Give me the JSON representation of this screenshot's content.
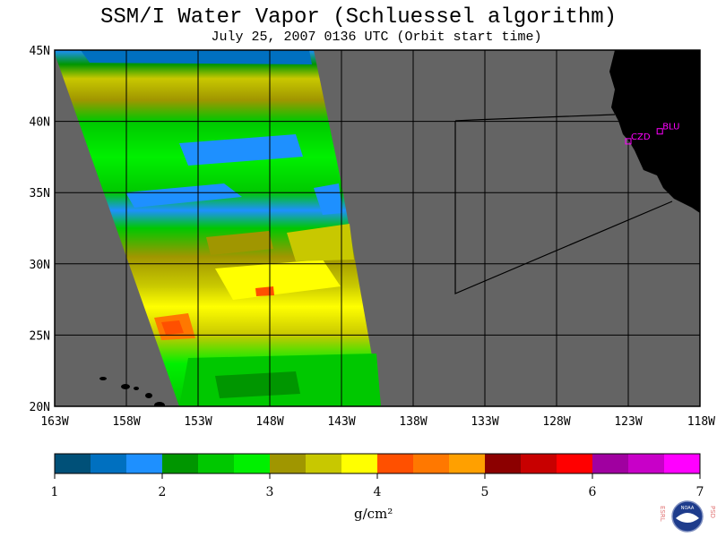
{
  "header": {
    "title": "SSM/I Water Vapor (Schluessel algorithm)",
    "subtitle": "July 25, 2007  0136 UTC  (Orbit start time)"
  },
  "map": {
    "lat_labels": [
      "45N",
      "40N",
      "35N",
      "30N",
      "25N",
      "20N"
    ],
    "lon_labels": [
      "163W",
      "158W",
      "153W",
      "148W",
      "143W",
      "138W",
      "133W",
      "128W",
      "123W",
      "118W"
    ],
    "lat_range": [
      20,
      45
    ],
    "lon_range": [
      -163,
      -118
    ],
    "stations": [
      {
        "label": "CZD",
        "lon": -123.0,
        "lat": 38.6
      },
      {
        "label": "BLU",
        "lon": -120.8,
        "lat": 39.3
      }
    ],
    "colors": {
      "background": "#646464",
      "land": "#000000",
      "station": "#ff00ff"
    }
  },
  "colorbar": {
    "tick_labels": [
      "1",
      "2",
      "3",
      "4",
      "5",
      "6",
      "7"
    ],
    "unit": "g/cm²",
    "range": [
      1,
      7
    ],
    "colors": [
      "#005078",
      "#0070c0",
      "#1e90ff",
      "#009600",
      "#00c800",
      "#00f000",
      "#a09600",
      "#c8c800",
      "#ffff00",
      "#ff5000",
      "#ff7800",
      "#ffa000",
      "#8c0000",
      "#c80000",
      "#ff0000",
      "#a000a0",
      "#c800c8",
      "#ff00ff"
    ]
  },
  "logo": {
    "left_text": "ESRL",
    "right_text": "PSD",
    "center_text": "NOAA"
  }
}
